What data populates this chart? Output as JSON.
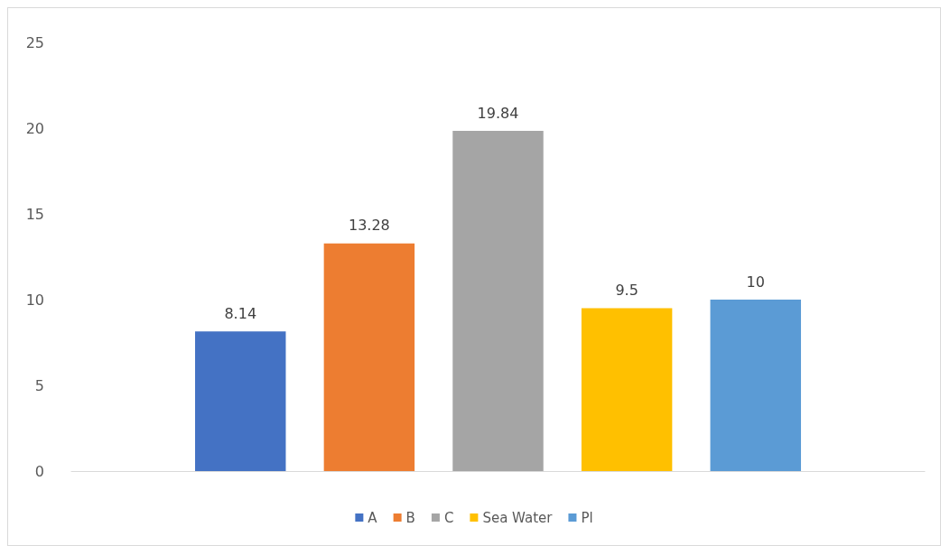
{
  "chart_data": {
    "type": "bar",
    "categories": [
      null
    ],
    "series": [
      {
        "name": "A",
        "color": "#4472c4",
        "values": [
          8.14
        ]
      },
      {
        "name": "B",
        "color": "#ed7d31",
        "values": [
          13.28
        ]
      },
      {
        "name": "C",
        "color": "#a5a5a5",
        "values": [
          19.84
        ]
      },
      {
        "name": "Sea Water",
        "color": "#ffc000",
        "values": [
          9.5
        ]
      },
      {
        "name": "Pl",
        "color": "#5b9bd5",
        "values": [
          10
        ]
      }
    ],
    "ylim": [
      0,
      25
    ],
    "yticks": [
      0,
      5,
      10,
      15,
      20,
      25
    ],
    "grid": false,
    "legend": "bottom",
    "data_labels": true
  }
}
